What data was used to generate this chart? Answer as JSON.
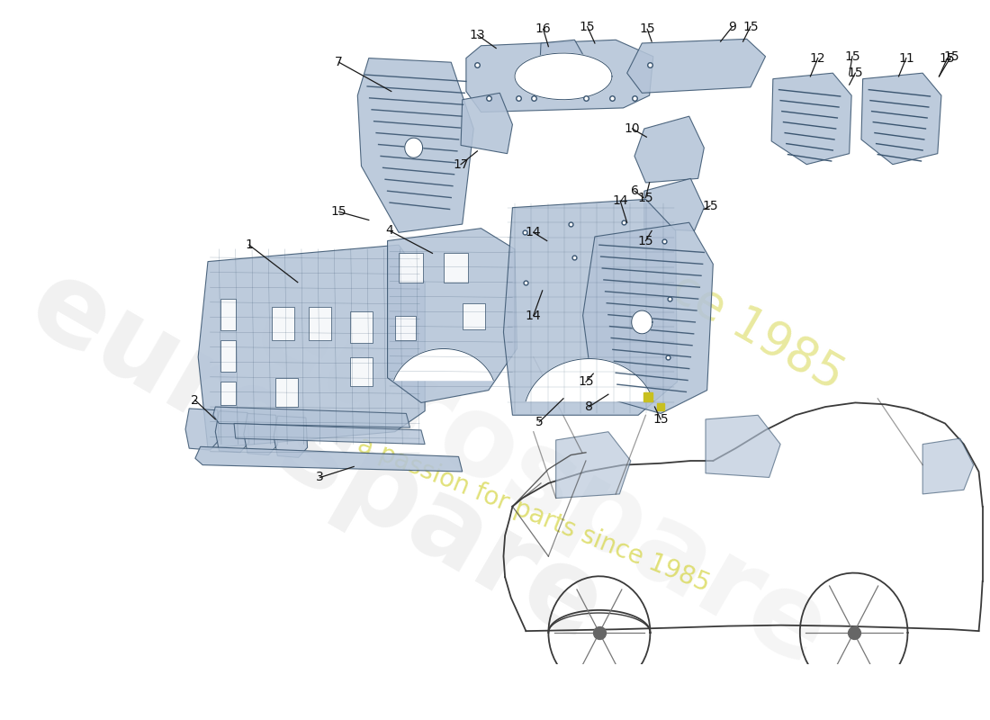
{
  "background_color": "#ffffff",
  "part_fill": "#b4c4d8",
  "part_edge": "#3a5570",
  "line_color": "#1a1a1a",
  "label_color": "#111111",
  "watermark1": "eurospare",
  "watermark2": "a passion for parts since 1985",
  "wm1_color": "#d0d0d0",
  "wm2_color": "#d4d440",
  "figsize": [
    11.0,
    8.0
  ],
  "dpi": 100
}
